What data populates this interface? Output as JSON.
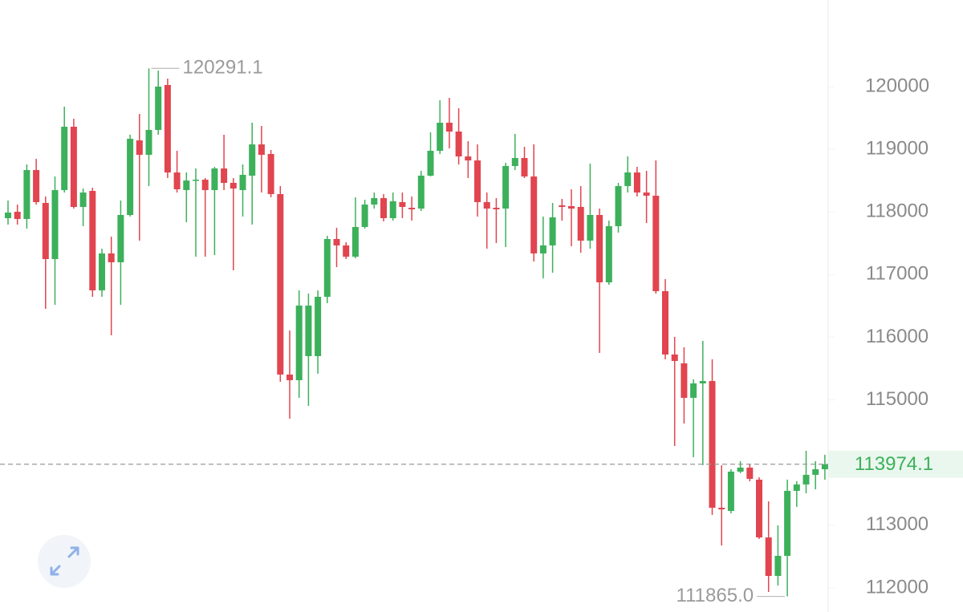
{
  "chart_data": {
    "type": "candlestick",
    "open": [
      117901,
      118003,
      117888,
      118669,
      118144,
      117248,
      118349,
      119360,
      118080,
      118336,
      116749,
      117338,
      117197,
      117952,
      119142,
      118912,
      119309,
      120026,
      118630,
      118349,
      118502,
      118515,
      118349,
      118694,
      118464,
      118349,
      118579,
      119078,
      118925,
      118285,
      115405,
      115315,
      115699,
      115699,
      116646,
      117568,
      117466,
      117286,
      117760,
      118118,
      118221,
      117901,
      118157,
      118067,
      118054,
      118579,
      118976,
      119424,
      119283,
      118886,
      118822,
      118157,
      118067,
      118054,
      118733,
      118861,
      118566,
      117338,
      117466,
      118106,
      118093,
      118080,
      117542,
      117952,
      116877,
      117773,
      118413,
      118630,
      118310,
      118259,
      116736,
      115725,
      115584,
      115034,
      115264,
      115302,
      113280,
      113229,
      113856,
      113920,
      113728,
      112806,
      112192,
      112512,
      113549,
      113651,
      113805,
      113894
    ],
    "high": [
      118182,
      118118,
      118758,
      118848,
      118246,
      118566,
      119680,
      119488,
      118374,
      118387,
      117414,
      117606,
      118182,
      119232,
      119565,
      120291.1,
      120256,
      120128,
      118976,
      118630,
      118694,
      118541,
      118720,
      119232,
      118541,
      118758,
      119424,
      119373,
      118989,
      118413,
      116109,
      116749,
      116698,
      116749,
      117619,
      117747,
      117517,
      118234,
      118195,
      118310,
      118285,
      118310,
      118310,
      118246,
      118656,
      119270,
      119782,
      119821,
      119654,
      119130,
      119078,
      118310,
      118221,
      118784,
      119245,
      119040,
      119078,
      117926,
      118144,
      118208,
      118362,
      118413,
      118771,
      118054,
      117862,
      118464,
      118886,
      118720,
      118656,
      118822,
      116928,
      116006,
      115840,
      115328,
      115942,
      115648,
      113958,
      113894,
      114022,
      113984,
      113766,
      113382,
      112998,
      113728,
      113702,
      114189,
      114022,
      114125
    ],
    "low": [
      117798,
      117798,
      117734,
      118118,
      116454,
      116518,
      118310,
      118054,
      117773,
      116646,
      116646,
      116032,
      116518,
      117926,
      117542,
      118413,
      119232,
      118541,
      118310,
      117837,
      117286,
      117286,
      117312,
      118349,
      117069,
      117926,
      117798,
      118310,
      118234,
      115290,
      114701,
      115034,
      114906,
      115418,
      116544,
      117120,
      117248,
      117261,
      117734,
      118054,
      117850,
      117862,
      117901,
      117862,
      118016,
      118566,
      118925,
      119014,
      118758,
      118541,
      117926,
      117414,
      117504,
      117440,
      118669,
      118541,
      117210,
      116941,
      117030,
      117862,
      117453,
      117350,
      117414,
      115750,
      116838,
      117670,
      118310,
      118246,
      117824,
      116698,
      115648,
      114266,
      114624,
      114086,
      113958,
      113165,
      112678,
      113190,
      113830,
      113702,
      112781,
      111936,
      112038,
      111865.0,
      113293,
      113510,
      113574,
      113728
    ],
    "close": [
      117990,
      117888,
      118669,
      118157,
      117248,
      118349,
      119360,
      118080,
      118310,
      116749,
      117338,
      117197,
      117952,
      119168,
      118912,
      119309,
      120000,
      118630,
      118362,
      118502,
      118515,
      118349,
      118694,
      118464,
      118374,
      118592,
      119078,
      118912,
      118285,
      115405,
      115315,
      116506,
      116506,
      116646,
      117568,
      117466,
      117286,
      117760,
      118118,
      118221,
      117901,
      118170,
      118080,
      118042,
      118579,
      118976,
      119424,
      119283,
      118886,
      118822,
      118157,
      118054,
      118042,
      118733,
      118861,
      118566,
      117338,
      117466,
      117914,
      118080,
      118054,
      117542,
      117952,
      116877,
      117773,
      118413,
      118630,
      118310,
      118259,
      116736,
      115725,
      115622,
      115034,
      115264,
      115302,
      113280,
      113254,
      113856,
      113920,
      113741,
      112806,
      112192,
      112512,
      113549,
      113651,
      113805,
      113894,
      113974.1
    ],
    "up_color": "#3db05b",
    "down_color": "#e1454f",
    "ylim": [
      111616,
      121382.4
    ],
    "yticks": [
      112000,
      113000,
      114000,
      115000,
      116000,
      117000,
      118000,
      119000,
      120000
    ],
    "high_marker": 120291.1,
    "low_marker": {
      "value": 111865.0,
      "label": "111865.0"
    },
    "last_price": 113974.1
  }
}
